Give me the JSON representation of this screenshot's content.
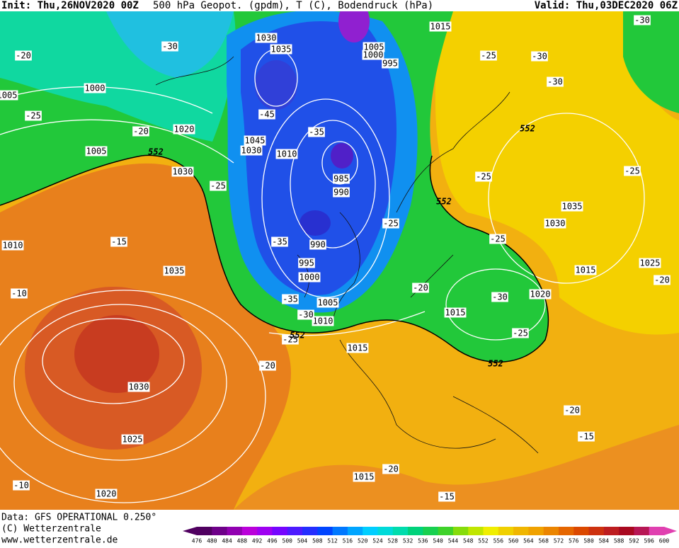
{
  "header": {
    "init": "Init: Thu,26NOV2020 00Z",
    "title": "500 hPa Geopot. (gpdm), T (C), Bodendruck (hPa)",
    "valid": "Valid: Thu,03DEC2020 06Z"
  },
  "map": {
    "isobar_labels": [
      "1015",
      "1030",
      "1035",
      "1005",
      "1000",
      "995",
      "1000",
      "1005",
      "1020",
      "1005",
      "1045",
      "1030",
      "1010",
      "985",
      "990",
      "1030",
      "1010",
      "990",
      "995",
      "1000",
      "1035",
      "1005",
      "1010",
      "1015",
      "1030",
      "1025",
      "1020",
      "1015",
      "1035",
      "1030",
      "1015",
      "1025",
      "1020",
      "1015"
    ],
    "isotherm_labels": [
      "-20",
      "-30",
      "-25",
      "-20",
      "-45",
      "-35",
      "-25",
      "-15",
      "-35",
      "-10",
      "-35",
      "-30",
      "-25",
      "-20",
      "-20",
      "-25",
      "-30",
      "-25",
      "-25",
      "-25",
      "-25",
      "-30",
      "-30",
      "-25",
      "-30",
      "-20",
      "-20",
      "-15",
      "-20",
      "-15",
      "-10"
    ],
    "height_labels": [
      "552",
      "552",
      "552",
      "552",
      "552"
    ]
  },
  "footer": {
    "data": "Data: GFS OPERATIONAL 0.250°",
    "copyright": "(C) Wetterzentrale",
    "url": "www.wetterzentrale.de"
  },
  "colorbar": {
    "labels": [
      476,
      480,
      484,
      488,
      492,
      496,
      500,
      504,
      508,
      512,
      516,
      520,
      524,
      528,
      532,
      536,
      540,
      544,
      548,
      552,
      556,
      560,
      564,
      568,
      572,
      576,
      580,
      584,
      588,
      592,
      596,
      600
    ]
  }
}
